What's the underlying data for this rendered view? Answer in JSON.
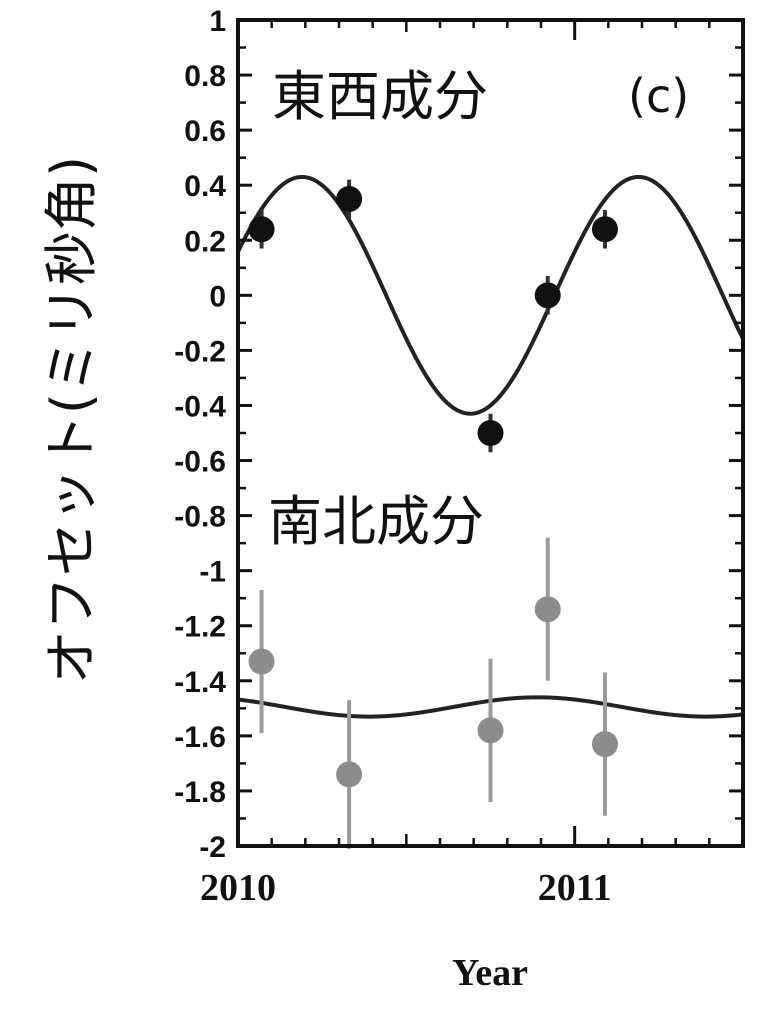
{
  "chart_data": {
    "type": "scatter",
    "xlabel": "Year",
    "ylabel": "オフセット(ミリ秒角)",
    "panel_label": "(c)",
    "xlim": [
      2010,
      2011.5
    ],
    "ylim": [
      -2,
      1
    ],
    "x_ticks": [
      2010,
      2011
    ],
    "y_ticks": [
      "1",
      "0.8",
      "0.6",
      "0.4",
      "0.2",
      "0",
      "-0.2",
      "-0.4",
      "-0.6",
      "-0.8",
      "-1",
      "-1.2",
      "-1.4",
      "-1.6",
      "-1.8",
      "-2"
    ],
    "series": [
      {
        "name": "東西成分",
        "color": "#111111",
        "x": [
          2010.07,
          2010.33,
          2010.75,
          2010.92,
          2011.09
        ],
        "y": [
          0.24,
          0.35,
          -0.5,
          0.0,
          0.24
        ],
        "yerr": [
          0.07,
          0.07,
          0.07,
          0.07,
          0.07
        ],
        "fit": {
          "type": "sine",
          "amplitude": 0.43,
          "offset": 0.0,
          "period": 1.0,
          "peak_x": 2010.19
        }
      },
      {
        "name": "南北成分",
        "color": "#8c8c8c",
        "x": [
          2010.07,
          2010.33,
          2010.75,
          2010.92,
          2011.09
        ],
        "y": [
          -1.33,
          -1.74,
          -1.58,
          -1.14,
          -1.63
        ],
        "yerr": [
          0.26,
          0.27,
          0.26,
          0.26,
          0.26
        ],
        "fit": {
          "type": "sine",
          "amplitude": 0.035,
          "offset": -1.495,
          "period": 1.0,
          "peak_x": 2010.89
        }
      }
    ],
    "fit_line_color": "#222222"
  }
}
